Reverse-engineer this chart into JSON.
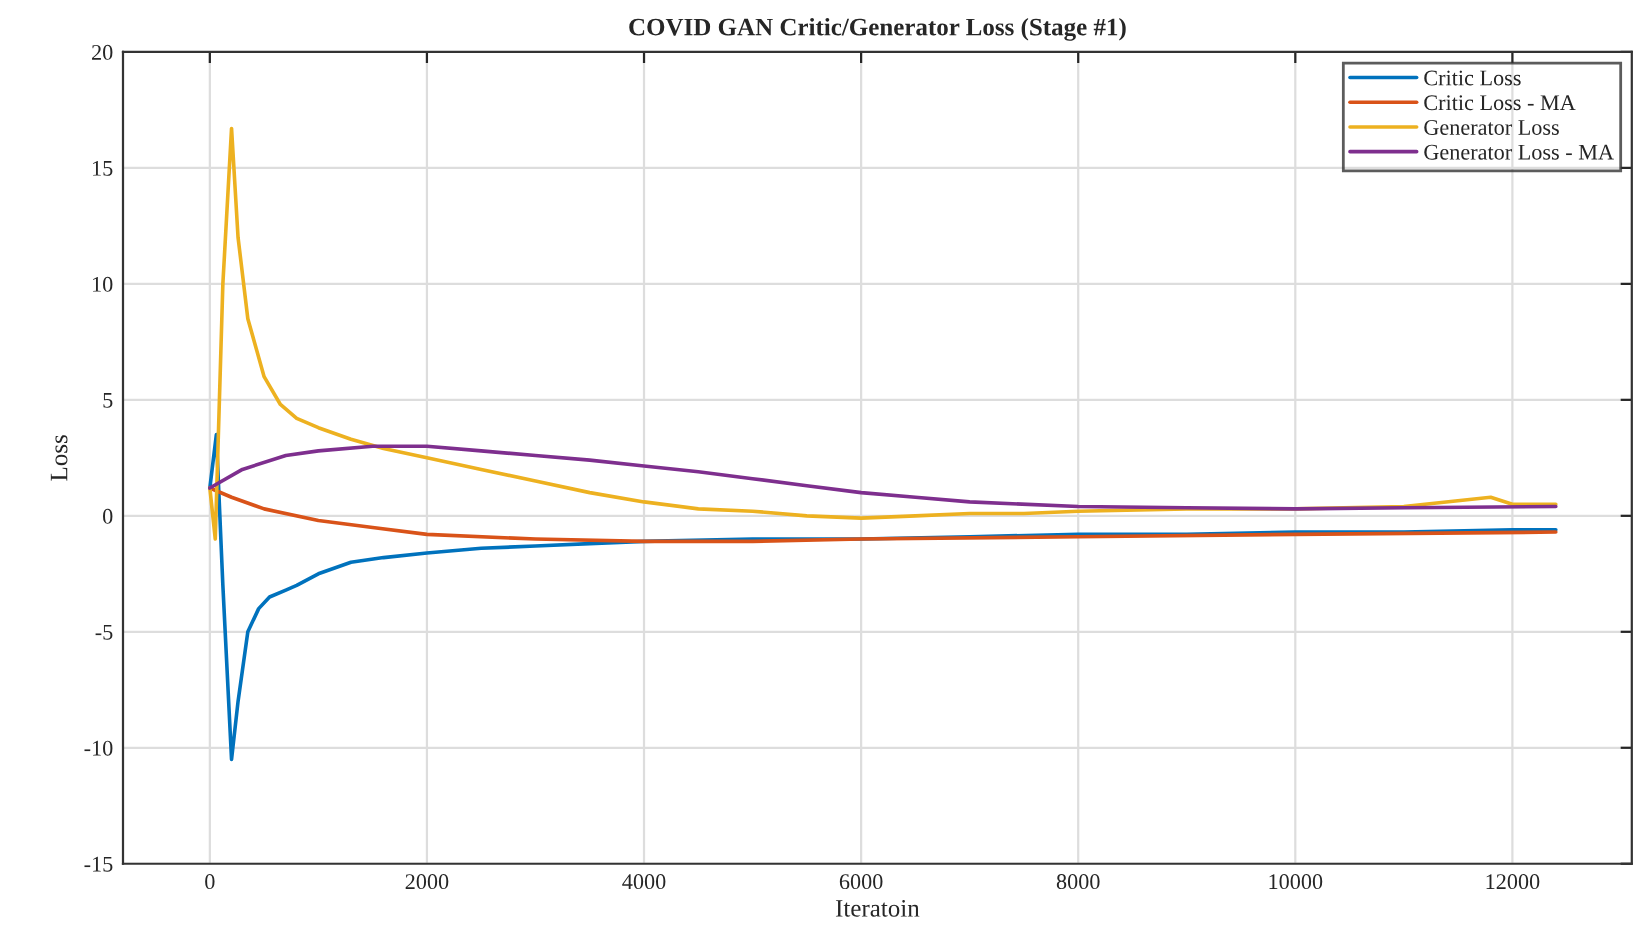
{
  "chart_data": {
    "type": "line",
    "title": "COVID GAN Critic/Generator Loss (Stage #1)",
    "xlabel": "Iteratoin",
    "ylabel": "Loss",
    "xlim": [
      -800,
      13100
    ],
    "xticks": [
      0,
      2000,
      4000,
      6000,
      8000,
      10000,
      12000
    ],
    "ylim": [
      -15,
      20
    ],
    "yticks": [
      -15,
      -10,
      -5,
      0,
      5,
      10,
      15,
      20
    ],
    "grid": true,
    "legend": "top right",
    "line_style": "solid",
    "marker": "none",
    "series": [
      {
        "name": "Critic Loss",
        "color": "#0072bd",
        "x": [
          0,
          60,
          120,
          200,
          260,
          350,
          450,
          550,
          700,
          800,
          1000,
          1300,
          1600,
          2000,
          2500,
          3000,
          3500,
          4000,
          5000,
          6000,
          7000,
          8000,
          9000,
          10000,
          11000,
          12000,
          12400
        ],
        "values": [
          1.2,
          3.5,
          -3,
          -10.5,
          -8,
          -5,
          -4,
          -3.5,
          -3.2,
          -3,
          -2.5,
          -2,
          -1.8,
          -1.6,
          -1.4,
          -1.3,
          -1.2,
          -1.1,
          -1.0,
          -1.0,
          -0.9,
          -0.8,
          -0.8,
          -0.7,
          -0.7,
          -0.6,
          -0.6
        ]
      },
      {
        "name": "Critic Loss - MA",
        "color": "#d95319",
        "x": [
          0,
          200,
          500,
          1000,
          1500,
          2000,
          3000,
          4000,
          5000,
          6000,
          8000,
          10000,
          12400
        ],
        "values": [
          1.2,
          0.8,
          0.3,
          -0.2,
          -0.5,
          -0.8,
          -1.0,
          -1.1,
          -1.1,
          -1.0,
          -0.9,
          -0.8,
          -0.7
        ]
      },
      {
        "name": "Generator Loss",
        "color": "#edb120",
        "x": [
          0,
          50,
          120,
          200,
          260,
          350,
          500,
          650,
          800,
          1000,
          1300,
          1600,
          2000,
          2500,
          3000,
          3500,
          4000,
          4500,
          5000,
          5500,
          6000,
          6500,
          7000,
          7500,
          8000,
          9000,
          10000,
          11000,
          11800,
          12000,
          12400
        ],
        "values": [
          1.2,
          -1,
          10,
          16.7,
          12,
          8.5,
          6,
          4.8,
          4.2,
          3.8,
          3.3,
          2.9,
          2.5,
          2.0,
          1.5,
          1.0,
          0.6,
          0.3,
          0.2,
          0.0,
          -0.1,
          0.0,
          0.1,
          0.1,
          0.2,
          0.3,
          0.3,
          0.4,
          0.8,
          0.5,
          0.5
        ]
      },
      {
        "name": "Generator Loss - MA",
        "color": "#7e2f8e",
        "x": [
          0,
          300,
          700,
          1000,
          1500,
          2000,
          2500,
          3000,
          3500,
          4000,
          4500,
          5000,
          5500,
          6000,
          6500,
          7000,
          8000,
          9000,
          10000,
          11000,
          12400
        ],
        "values": [
          1.2,
          2.0,
          2.6,
          2.8,
          3.0,
          3.0,
          2.8,
          2.6,
          2.4,
          2.15,
          1.9,
          1.6,
          1.3,
          1.0,
          0.8,
          0.6,
          0.4,
          0.35,
          0.3,
          0.35,
          0.4
        ]
      }
    ]
  }
}
